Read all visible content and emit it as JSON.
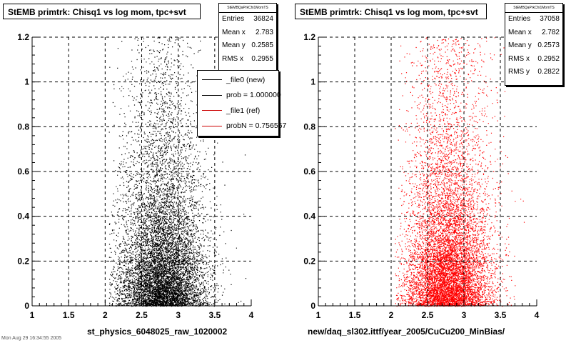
{
  "panels": [
    {
      "title": "StEMB primtrk: Chisq1 vs log mom, tpc+svt",
      "stats": {
        "name": "StEMBQaPrkChi1MomTS",
        "rows": [
          {
            "label": "Entries",
            "value": "36824"
          },
          {
            "label": "Mean x",
            "value": "2.783"
          },
          {
            "label": "Mean y",
            "value": "0.2585"
          },
          {
            "label": "RMS x",
            "value": "0.2955"
          }
        ]
      },
      "legend": [
        {
          "label": "_file0 (new)",
          "color": "#000000"
        },
        {
          "label": "prob = 1.000000",
          "color": "#000000"
        },
        {
          "label": "_file1 (ref)",
          "color": "#cc0000"
        },
        {
          "label": "probN = 0.756567",
          "color": "#cc0000"
        }
      ],
      "xtitle": "st_physics_6048025_raw_1020002"
    },
    {
      "title": "StEMB primtrk: Chisq1 vs log mom, tpc+svt",
      "stats": {
        "name": "StEMBQaPrkChi1MomTS",
        "rows": [
          {
            "label": "Entries",
            "value": "37058"
          },
          {
            "label": "Mean x",
            "value": "2.782"
          },
          {
            "label": "Mean y",
            "value": "0.2573"
          },
          {
            "label": "RMS x",
            "value": "0.2952"
          },
          {
            "label": "RMS y",
            "value": "0.2822"
          }
        ]
      },
      "xtitle": "new/daq_sl302.ittf/year_2005/CuCu200_MinBias/"
    }
  ],
  "footer": "Mon Aug 29 16:34:55 2005",
  "chart_data": [
    {
      "type": "scatter",
      "title": "StEMB primtrk: Chisq1 vs log mom, tpc+svt",
      "xlabel": "st_physics_6048025_raw_1020002",
      "ylabel": "",
      "xlim": [
        1,
        4
      ],
      "ylim": [
        0,
        1.2
      ],
      "xticks": [
        "1",
        "1.5",
        "2",
        "2.5",
        "3",
        "3.5",
        "4"
      ],
      "yticks": [
        "0",
        "0.2",
        "0.4",
        "0.6",
        "0.8",
        "1",
        "1.2"
      ],
      "grid": true,
      "color": "#000000",
      "entries": 36824,
      "mean_x": 2.783,
      "mean_y": 0.2585,
      "rms_x": 0.2955,
      "legend": "top-right"
    },
    {
      "type": "scatter",
      "title": "StEMB primtrk: Chisq1 vs log mom, tpc+svt",
      "xlabel": "new/daq_sl302.ittf/year_2005/CuCu200_MinBias/",
      "ylabel": "",
      "xlim": [
        1,
        4
      ],
      "ylim": [
        0,
        1.2
      ],
      "xticks": [
        "1",
        "1.5",
        "2",
        "2.5",
        "3",
        "3.5",
        "4"
      ],
      "yticks": [
        "0",
        "0.2",
        "0.4",
        "0.6",
        "0.8",
        "1",
        "1.2"
      ],
      "grid": true,
      "color": "#ff0000",
      "entries": 37058,
      "mean_x": 2.782,
      "mean_y": 0.2573,
      "rms_x": 0.2952,
      "rms_y": 0.2822
    }
  ]
}
